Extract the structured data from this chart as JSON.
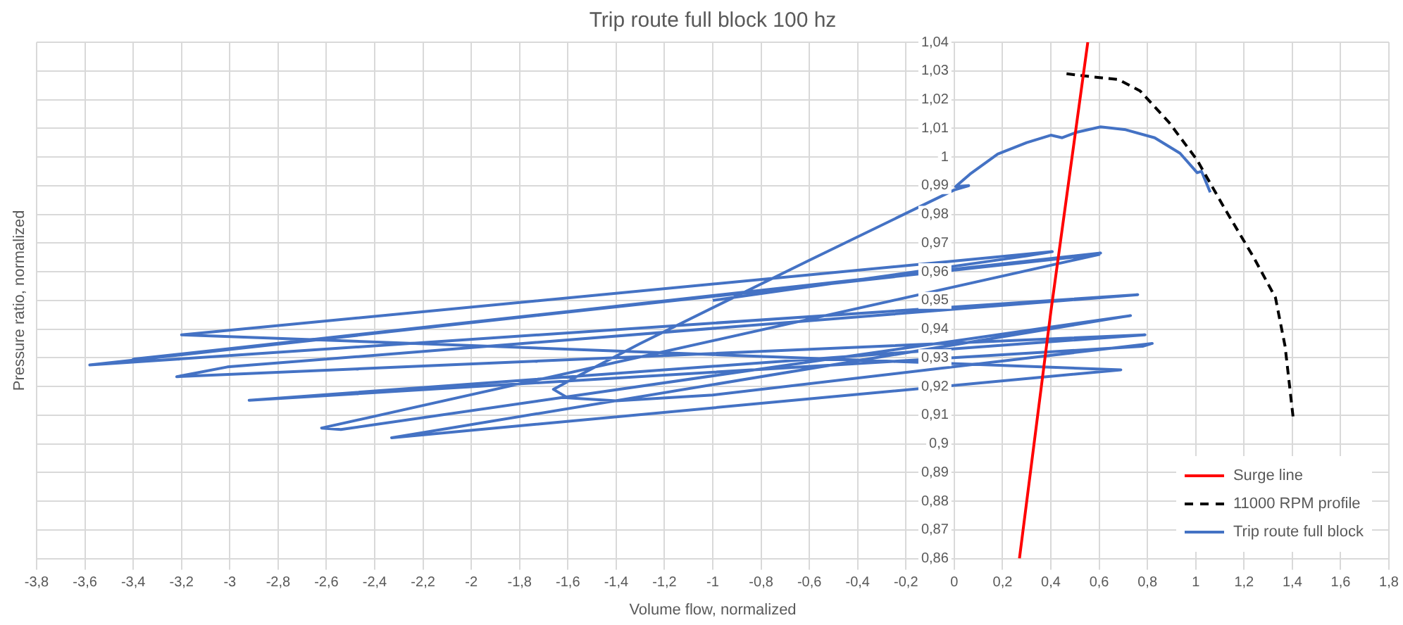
{
  "chart_data": {
    "type": "line",
    "title": "Trip route full block 100 hz",
    "xlabel": "Volume flow, normalized",
    "ylabel": "Pressure ratio, normalized",
    "xlim": [
      -3.8,
      1.8
    ],
    "ylim": [
      0.86,
      1.04
    ],
    "xticks": [
      {
        "value": -3.8,
        "label": "-3,8"
      },
      {
        "value": -3.6,
        "label": "-3,6"
      },
      {
        "value": -3.4,
        "label": "-3,4"
      },
      {
        "value": -3.2,
        "label": "-3,2"
      },
      -3,
      {
        "value": -2.8,
        "label": "-2,8"
      },
      {
        "value": -2.6,
        "label": "-2,6"
      },
      {
        "value": -2.4,
        "label": "-2,4"
      },
      {
        "value": -2.2,
        "label": "-2,2"
      },
      -2,
      {
        "value": -1.8,
        "label": "-1,8"
      },
      {
        "value": -1.6,
        "label": "-1,6"
      },
      {
        "value": -1.4,
        "label": "-1,4"
      },
      {
        "value": -1.2,
        "label": "-1,2"
      },
      -1,
      {
        "value": -0.8,
        "label": "-0,8"
      },
      {
        "value": -0.6,
        "label": "-0,6"
      },
      {
        "value": -0.4,
        "label": "-0,4"
      },
      {
        "value": -0.2,
        "label": "-0,2"
      },
      0,
      {
        "value": 0.2,
        "label": "0,2"
      },
      {
        "value": 0.4,
        "label": "0,4"
      },
      {
        "value": 0.6,
        "label": "0,6"
      },
      {
        "value": 0.8,
        "label": "0,8"
      },
      1,
      {
        "value": 1.2,
        "label": "1,2"
      },
      {
        "value": 1.4,
        "label": "1,4"
      },
      {
        "value": 1.6,
        "label": "1,6"
      },
      {
        "value": 1.8,
        "label": "1,8"
      }
    ],
    "yticks": [
      {
        "value": 0.86,
        "label": "0,86"
      },
      {
        "value": 0.87,
        "label": "0,87"
      },
      {
        "value": 0.88,
        "label": "0,88"
      },
      {
        "value": 0.89,
        "label": "0,89"
      },
      {
        "value": 0.9,
        "label": "0,9"
      },
      {
        "value": 0.91,
        "label": "0,91"
      },
      {
        "value": 0.92,
        "label": "0,92"
      },
      {
        "value": 0.93,
        "label": "0,93"
      },
      {
        "value": 0.94,
        "label": "0,94"
      },
      {
        "value": 0.95,
        "label": "0,95"
      },
      {
        "value": 0.96,
        "label": "0,96"
      },
      {
        "value": 0.97,
        "label": "0,97"
      },
      {
        "value": 0.98,
        "label": "0,98"
      },
      {
        "value": 0.99,
        "label": "0,99"
      },
      1,
      {
        "value": 1.01,
        "label": "1,01"
      },
      {
        "value": 1.02,
        "label": "1,02"
      },
      {
        "value": 1.03,
        "label": "1,03"
      },
      {
        "value": 1.04,
        "label": "1,04"
      }
    ],
    "grid": true,
    "legend": "bottom right",
    "marker": "none",
    "series": [
      {
        "name": "Surge line",
        "type": "line",
        "color": "#ff0000",
        "line_style": "solid",
        "x": [
          0.27,
          0.4,
          0.553
        ],
        "values": [
          0.86,
          0.946,
          1.04
        ]
      },
      {
        "name": "11000 RPM profile",
        "type": "line",
        "color": "#000000",
        "line_style": "dashed",
        "x": [
          0.465,
          0.565,
          0.68,
          0.77,
          0.89,
          1.005,
          1.12,
          1.24,
          1.33,
          1.37,
          1.405
        ],
        "values": [
          1.029,
          1.028,
          1.027,
          1.023,
          1.012,
          0.999,
          0.982,
          0.965,
          0.951,
          0.934,
          0.908
        ]
      },
      {
        "name": "Trip route full block",
        "type": "line",
        "color": "#4472c4",
        "line_style": "solid",
        "x": [
          1.06,
          1.024,
          1.006,
          0.935,
          0.83,
          0.71,
          0.606,
          0.506,
          0.447,
          0.4,
          0.3,
          0.18,
          0.065,
          0.006,
          0.06,
          0.0,
          -0.6,
          -1.3,
          -1.55,
          -1.66,
          -1.6,
          -1.4,
          -1.0,
          0.82,
          0.78,
          -2.92,
          0.79,
          -3.22,
          -3.01,
          0.76,
          -3.58,
          0.606,
          -3.4,
          0.6,
          -2.62,
          -2.54,
          0.73,
          -2.33,
          0.69,
          -3.2,
          0.406,
          0.3,
          -1.0
        ],
        "values": [
          0.9877,
          0.995,
          0.9945,
          1.0013,
          1.0067,
          1.0095,
          1.0105,
          1.0086,
          1.0067,
          1.0076,
          1.005,
          1.001,
          0.994,
          0.9897,
          0.99,
          0.9885,
          0.964,
          0.935,
          0.924,
          0.919,
          0.916,
          0.915,
          0.917,
          0.935,
          0.934,
          0.9152,
          0.938,
          0.9234,
          0.9268,
          0.952,
          0.9275,
          0.9665,
          0.9295,
          0.966,
          0.9055,
          0.905,
          0.9447,
          0.9021,
          0.9258,
          0.938,
          0.967,
          0.9655,
          0.95
        ]
      }
    ]
  }
}
